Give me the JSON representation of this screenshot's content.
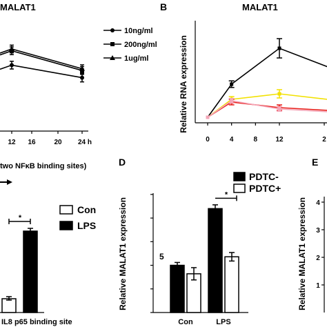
{
  "panels": {
    "A": {
      "title": "MALAT1"
    },
    "B": {
      "letter": "B",
      "title": "MALAT1"
    },
    "C": {
      "line_text": "two NFκB binding sites)"
    },
    "D": {
      "letter": "D"
    },
    "E": {
      "letter": "E"
    }
  },
  "chart_data": [
    {
      "id": "A",
      "type": "line",
      "title": "MALAT1",
      "x": [
        12,
        24
      ],
      "xticks": [
        "12",
        "16",
        "20",
        "24 h"
      ],
      "series": [
        {
          "name": "10ng/ml",
          "marker": "circle",
          "values": [
            1.55,
            1.2
          ],
          "err": [
            0.05,
            0.06
          ]
        },
        {
          "name": "200ng/ml",
          "marker": "square",
          "values": [
            1.95,
            1.4
          ],
          "err": [
            0.05,
            0.05
          ]
        },
        {
          "name": "1ug/ml",
          "marker": "triangle",
          "values": [
            2.0,
            1.45
          ],
          "err": [
            0.05,
            0.05
          ]
        }
      ]
    },
    {
      "id": "B",
      "type": "line",
      "title": "MALAT1",
      "ylabel": "Relative RNA expression",
      "xticks": [
        "0",
        "4",
        "8",
        "12",
        "2"
      ],
      "ylim": [
        0.8,
        4.0
      ],
      "series": [
        {
          "color": "#000000",
          "x": [
            0,
            4,
            12,
            24
          ],
          "values": [
            1.0,
            2.2,
            3.5,
            2.5
          ],
          "err": [
            0.0,
            0.12,
            0.35,
            0.2
          ]
        },
        {
          "color": "#f2e100",
          "x": [
            0,
            4,
            12,
            24
          ],
          "values": [
            1.0,
            1.65,
            1.85,
            1.55
          ],
          "err": [
            0.0,
            0.1,
            0.15,
            0.1
          ]
        },
        {
          "color": "#e8201c",
          "x": [
            0,
            4,
            12,
            24
          ],
          "values": [
            1.0,
            1.55,
            1.35,
            1.2
          ],
          "err": [
            0.0,
            0.1,
            0.1,
            0.08
          ]
        },
        {
          "color": "#f4a6b8",
          "x": [
            0,
            4,
            12,
            24
          ],
          "values": [
            1.0,
            1.6,
            1.3,
            1.15
          ],
          "err": [
            0.0,
            0.08,
            0.08,
            0.06
          ]
        }
      ]
    },
    {
      "id": "C",
      "type": "bar",
      "categories": [
        "IL8 p65 binding site"
      ],
      "series": [
        {
          "name": "Con",
          "fill": "#ffffff",
          "values": [
            1.0
          ],
          "err": [
            0.05
          ]
        },
        {
          "name": "LPS",
          "fill": "#000000",
          "values": [
            5.9
          ],
          "err": [
            0.1
          ]
        }
      ],
      "significance": "*"
    },
    {
      "id": "D",
      "type": "bar",
      "ylabel": "Relative MALAT1 expression",
      "categories": [
        "Con",
        "LPS"
      ],
      "yticks": [
        "0.0",
        "0.5",
        "1.0",
        "1.5",
        "2.0",
        "2.5"
      ],
      "ylim": [
        0,
        2.6
      ],
      "series": [
        {
          "name": "PDTC-",
          "fill": "#000000",
          "values": [
            1.0,
            2.2
          ],
          "err": [
            0.06,
            0.08
          ]
        },
        {
          "name": "PDTC+",
          "fill": "#ffffff",
          "values": [
            0.82,
            1.18
          ],
          "err": [
            0.13,
            0.09
          ]
        }
      ],
      "annotations": [
        "5",
        "*"
      ]
    },
    {
      "id": "E",
      "type": "bar",
      "ylabel": "Relative MALAT1 expression",
      "yticks": [
        "1",
        "2",
        "3",
        "4"
      ],
      "ylim": [
        0,
        4.2
      ]
    }
  ]
}
